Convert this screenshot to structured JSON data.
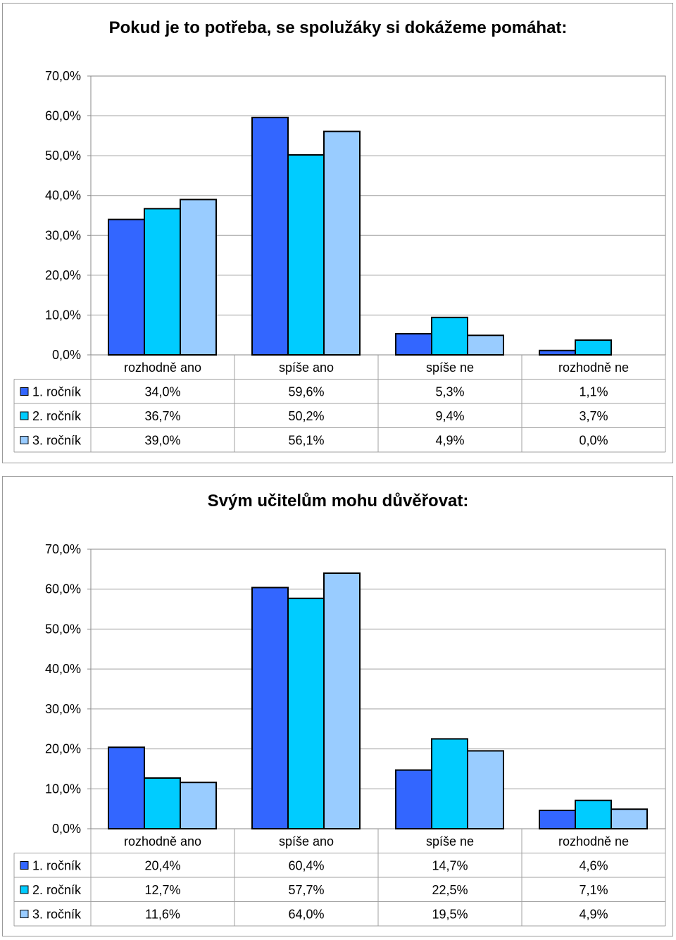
{
  "chart_data": [
    {
      "type": "bar",
      "title": "Pokud je to potřeba, se spolužáky si dokážeme pomáhat:",
      "categories": [
        "rozhodně ano",
        "spíše ano",
        "spíše ne",
        "rozhodně ne"
      ],
      "series": [
        {
          "name": "1. ročník",
          "values": [
            34.0,
            59.6,
            5.3,
            1.1
          ],
          "labels": [
            "34,0%",
            "59,6%",
            "5,3%",
            "1,1%"
          ],
          "color": "#3366ff"
        },
        {
          "name": "2. ročník",
          "values": [
            36.7,
            50.2,
            9.4,
            3.7
          ],
          "labels": [
            "36,7%",
            "50,2%",
            "9,4%",
            "3,7%"
          ],
          "color": "#00ccff"
        },
        {
          "name": "3. ročník",
          "values": [
            39.0,
            56.1,
            4.9,
            0.0
          ],
          "labels": [
            "39,0%",
            "56,1%",
            "4,9%",
            "0,0%"
          ],
          "color": "#99ccff"
        }
      ],
      "yticks": [
        "0,0%",
        "10,0%",
        "20,0%",
        "30,0%",
        "40,0%",
        "50,0%",
        "60,0%",
        "70,0%"
      ],
      "ylim": [
        0,
        70
      ],
      "grid": true,
      "legend": "data table below chart"
    },
    {
      "type": "bar",
      "title": "Svým učitelům mohu důvěřovat:",
      "categories": [
        "rozhodně ano",
        "spíše ano",
        "spíše ne",
        "rozhodně ne"
      ],
      "series": [
        {
          "name": "1. ročník",
          "values": [
            20.4,
            60.4,
            14.7,
            4.6
          ],
          "labels": [
            "20,4%",
            "60,4%",
            "14,7%",
            "4,6%"
          ],
          "color": "#3366ff"
        },
        {
          "name": "2. ročník",
          "values": [
            12.7,
            57.7,
            22.5,
            7.1
          ],
          "labels": [
            "12,7%",
            "57,7%",
            "22,5%",
            "7,1%"
          ],
          "color": "#00ccff"
        },
        {
          "name": "3. ročník",
          "values": [
            11.6,
            64.0,
            19.5,
            4.9
          ],
          "labels": [
            "11,6%",
            "64,0%",
            "19,5%",
            "4,9%"
          ],
          "color": "#99ccff"
        }
      ],
      "yticks": [
        "0,0%",
        "10,0%",
        "20,0%",
        "30,0%",
        "40,0%",
        "50,0%",
        "60,0%",
        "70,0%"
      ],
      "ylim": [
        0,
        70
      ],
      "grid": true,
      "legend": "data table below chart"
    }
  ]
}
